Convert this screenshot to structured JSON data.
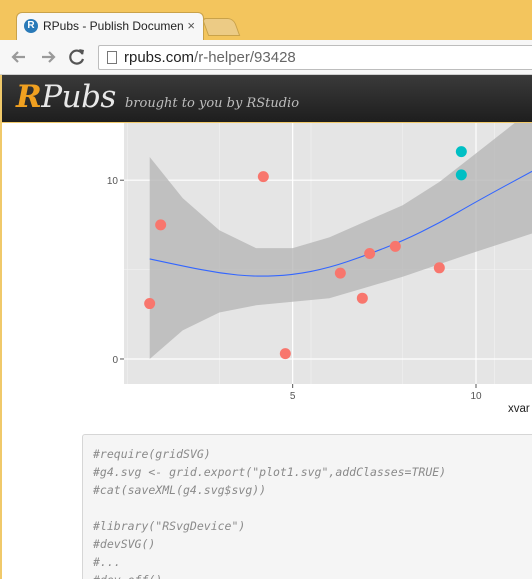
{
  "browser": {
    "tab": {
      "title": "RPubs - Publish Documen",
      "favicon": "R",
      "close": "×"
    },
    "url": {
      "host": "rpubs.com",
      "path": "/r-helper/93428"
    }
  },
  "header": {
    "logo_r": "R",
    "logo_rest": "Pubs",
    "tagline": "brought to you by RStudio"
  },
  "chart_data": {
    "type": "scatter",
    "xlabel": "xvar",
    "ylabel": "",
    "x_ticks": [
      "5",
      "10"
    ],
    "y_ticks": [
      "0",
      "10"
    ],
    "xlim": [
      0.4,
      11.8
    ],
    "ylim": [
      -1.4,
      13.2
    ],
    "grid": true,
    "series": [
      {
        "color": "#f8766d",
        "points": [
          [
            1.1,
            3.1
          ],
          [
            1.4,
            7.5
          ],
          [
            4.2,
            10.2
          ],
          [
            4.8,
            0.3
          ],
          [
            6.3,
            4.8
          ],
          [
            6.9,
            3.4
          ],
          [
            7.1,
            5.9
          ],
          [
            7.8,
            6.3
          ],
          [
            9.0,
            5.1
          ]
        ]
      },
      {
        "color": "#00bfc4",
        "points": [
          [
            9.6,
            11.6
          ],
          [
            9.6,
            10.3
          ]
        ]
      }
    ],
    "smooth": {
      "color": "#3366ff",
      "band_color": "#b3b3b3",
      "x": [
        1.1,
        2.0,
        3.0,
        4.0,
        5.0,
        6.0,
        7.0,
        8.0,
        9.0,
        10.0,
        11.8
      ],
      "y": [
        5.6,
        5.2,
        4.8,
        4.6,
        4.7,
        5.1,
        5.8,
        6.6,
        7.6,
        8.8,
        10.8
      ],
      "lower": [
        0.0,
        1.6,
        2.6,
        3.0,
        3.2,
        3.4,
        4.0,
        4.6,
        5.3,
        6.0,
        7.2
      ],
      "upper": [
        11.3,
        9.0,
        7.2,
        6.2,
        6.2,
        6.8,
        7.7,
        8.6,
        9.9,
        11.5,
        14.4
      ]
    }
  },
  "code": {
    "lines": [
      "#require(gridSVG)",
      "#g4.svg <- grid.export(\"plot1.svg\",addClasses=TRUE)",
      "#cat(saveXML(g4.svg$svg))",
      "",
      "#library(\"RSvgDevice\")",
      "#devSVG()",
      "#...",
      "#dev.off()"
    ]
  }
}
